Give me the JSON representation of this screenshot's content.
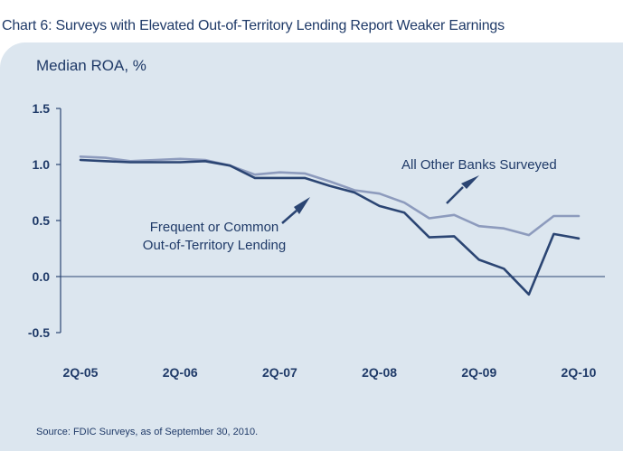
{
  "title": "Chart 6: Surveys with Elevated Out-of-Territory Lending Report Weaker Earnings",
  "source": "Source: FDIC Surveys, as of September 30, 2010.",
  "colors": {
    "dark_series": "#2b4573",
    "light_series": "#8d9bbd",
    "axis": "#2b4573",
    "text": "#1f3a68",
    "panel": "#dce6ef"
  },
  "chart_data": {
    "type": "line",
    "title": "Chart 6: Surveys with Elevated Out-of-Territory Lending Report Weaker Earnings",
    "ylabel": "Median ROA, %",
    "xlabel": "",
    "ylim": [
      -0.5,
      1.5
    ],
    "yticks": [
      -0.5,
      0.0,
      0.5,
      1.0,
      1.5
    ],
    "ytick_labels": [
      "-0.5",
      "0.0",
      "0.5",
      "1.0",
      "1.5"
    ],
    "x_tick_labels": [
      "2Q-05",
      "2Q-06",
      "2Q-07",
      "2Q-08",
      "2Q-09",
      "2Q-10"
    ],
    "x_tick_quarters": [
      0,
      4,
      8,
      12,
      16,
      20
    ],
    "x": [
      0,
      1,
      2,
      3,
      4,
      5,
      6,
      7,
      8,
      9,
      10,
      11,
      12,
      13,
      14,
      15,
      16,
      17,
      18,
      19,
      20
    ],
    "series": [
      {
        "name": "All Other Banks Surveyed",
        "color": "#8d9bbd",
        "values": [
          1.07,
          1.06,
          1.03,
          1.04,
          1.05,
          1.04,
          0.99,
          0.91,
          0.93,
          0.92,
          0.85,
          0.77,
          0.74,
          0.66,
          0.52,
          0.55,
          0.45,
          0.43,
          0.37,
          0.54,
          0.54
        ]
      },
      {
        "name": "Frequent or Common Out-of-Territory Lending",
        "color": "#2b4573",
        "values": [
          1.04,
          1.03,
          1.02,
          1.02,
          1.02,
          1.03,
          0.99,
          0.88,
          0.88,
          0.88,
          0.81,
          0.75,
          0.63,
          0.57,
          0.35,
          0.36,
          0.15,
          0.07,
          -0.16,
          0.38,
          0.34
        ]
      }
    ],
    "annotations": [
      {
        "text": "All Other Banks Surveyed",
        "series": "All Other Banks Surveyed"
      },
      {
        "text_lines": [
          "Frequent or Common",
          "Out-of-Territory Lending"
        ],
        "series": "Frequent or Common Out-of-Territory Lending"
      }
    ],
    "grid": false,
    "zero_line": true
  }
}
